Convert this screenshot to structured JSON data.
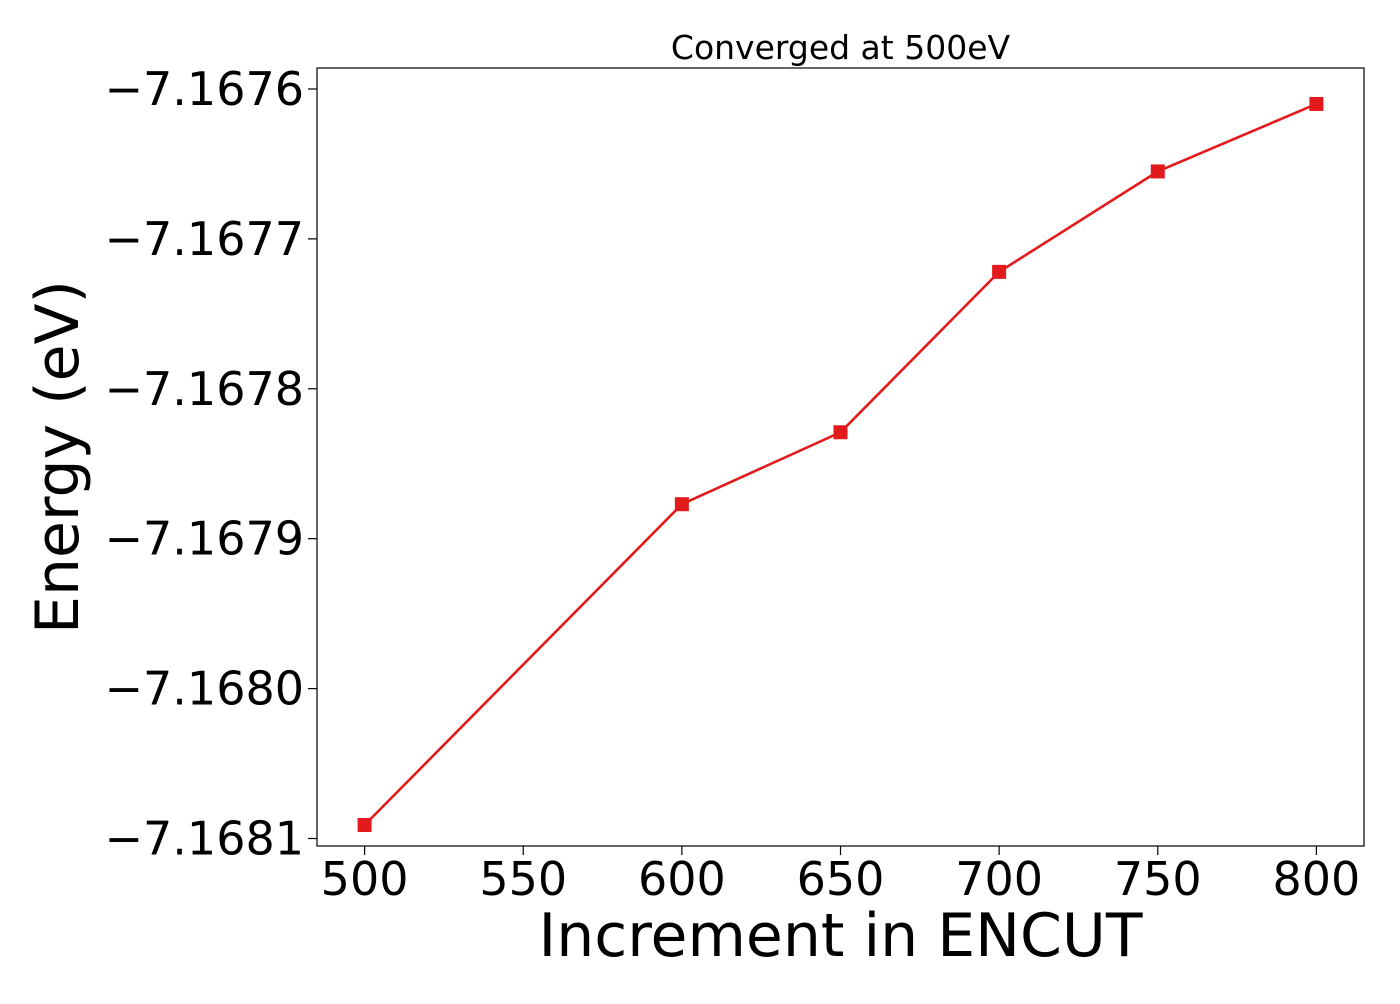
{
  "chart_data": {
    "type": "line",
    "title": "Converged at 500eV",
    "xlabel": "Increment in ENCUT",
    "ylabel": "Energy (eV)",
    "x": [
      500,
      600,
      650,
      700,
      750,
      800
    ],
    "series": [
      {
        "values": [
          -7.168091,
          -7.167877,
          -7.167829,
          -7.167722,
          -7.167655,
          -7.16761
        ],
        "color": "#e31a1c",
        "marker": "square"
      }
    ],
    "xticks": [
      500,
      550,
      600,
      650,
      700,
      750,
      800
    ],
    "xtick_labels": [
      "500",
      "550",
      "600",
      "650",
      "700",
      "750",
      "800"
    ],
    "yticks": [
      -7.1676,
      -7.1677,
      -7.1678,
      -7.1679,
      -7.168,
      -7.1681
    ],
    "ytick_labels": [
      "−7.1676",
      "−7.1677",
      "−7.1678",
      "−7.1679",
      "−7.1680",
      "−7.1681"
    ],
    "xlim": [
      485,
      815
    ],
    "ylim": [
      -7.168105,
      -7.167586
    ],
    "grid": false,
    "legend": "none"
  }
}
